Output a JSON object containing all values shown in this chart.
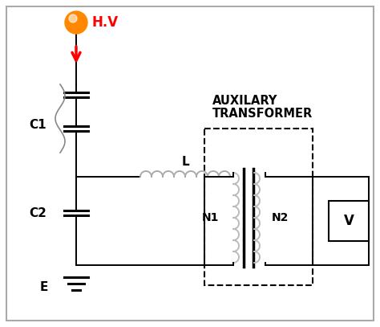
{
  "bg_color": "#ffffff",
  "border_color": "#aaaaaa",
  "hv_text": "H.V",
  "hv_color": "#ff0000",
  "hv_ball_color": "#ff8800",
  "aux_label_line1": "AUXILARY",
  "aux_label_line2": "TRANSFORMER",
  "c1_label": "C1",
  "c2_label": "C2",
  "e_label": "E",
  "l_label": "L",
  "n1_label": "N1",
  "n2_label": "N2",
  "v_label": "V",
  "dashed_box_color": "#000000",
  "line_color": "#000000",
  "coil_color": "#bbbbbb"
}
